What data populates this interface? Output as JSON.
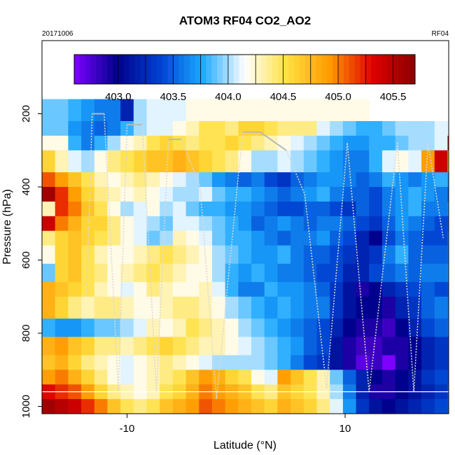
{
  "chart_data": {
    "type": "heatmap",
    "title": "ATOM3 RF04 CO2_AO2",
    "date_label": "20171006",
    "flight_label": "RF04",
    "xlabel": "Latitude (°N)",
    "ylabel": "Pressure (hPa)",
    "xlim": [
      -17.8,
      19.5
    ],
    "ylim": [
      1020,
      0
    ],
    "x_ticks": [
      -10,
      10
    ],
    "x_tick_labels": [
      "-10",
      "10"
    ],
    "y_ticks": [
      200,
      400,
      600,
      800,
      1000
    ],
    "y_tick_labels": [
      "200",
      "400",
      "600",
      "800",
      "1000"
    ],
    "colorbar": {
      "range": [
        402.6,
        405.7
      ],
      "ticks": [
        403.0,
        403.5,
        404.0,
        404.5,
        405.0,
        405.5
      ],
      "tick_labels": [
        "403.0",
        "403.5",
        "404.0",
        "404.5",
        "405.0",
        "405.5"
      ],
      "palette": [
        "#7e00ff",
        "#00008b",
        "#0040d0",
        "#1aa8ff",
        "#ffffff",
        "#ffe040",
        "#ff9a00",
        "#e00000",
        "#8b0000"
      ]
    },
    "heatmap": {
      "lat_start": -17.8,
      "lat_step": 1.2,
      "pressure_rows": [
        {
          "p_top": 160,
          "p_bot": 220,
          "values": [
            403.9,
            403.9,
            403.8,
            403.7,
            403.6,
            403.6,
            403.2,
            404.0,
            404.1,
            404.1,
            404.1,
            404.2,
            404.2,
            404.2,
            404.2,
            404.2,
            404.2,
            404.2,
            404.2,
            404.2,
            404.2,
            404.2,
            404.2,
            404.2,
            404.2,
            null,
            null,
            null,
            null,
            null,
            null,
            null
          ]
        },
        {
          "p_top": 220,
          "p_bot": 260,
          "values": [
            403.9,
            403.9,
            403.7,
            403.6,
            403.5,
            403.6,
            403.8,
            404.0,
            404.1,
            404.1,
            404.2,
            404.3,
            404.5,
            404.5,
            404.4,
            404.6,
            404.6,
            404.5,
            404.4,
            404.4,
            404.4,
            404.1,
            404.0,
            403.9,
            403.8,
            403.8,
            403.9,
            404.0,
            404.0,
            404.0,
            404.1,
            404.1
          ]
        },
        {
          "p_top": 260,
          "p_bot": 300,
          "values": [
            404.2,
            404.2,
            403.8,
            403.6,
            403.8,
            404.0,
            404.2,
            404.3,
            404.5,
            404.6,
            404.5,
            404.4,
            404.5,
            404.5,
            404.6,
            404.5,
            404.4,
            404.3,
            404.2,
            404.1,
            404.0,
            403.9,
            403.8,
            403.7,
            403.7,
            403.8,
            403.8,
            403.9,
            404.0,
            404.0,
            404.1,
            405.6
          ]
        },
        {
          "p_top": 300,
          "p_bot": 360,
          "values": [
            404.6,
            404.3,
            404.1,
            404.0,
            404.2,
            404.4,
            404.5,
            404.6,
            404.7,
            404.7,
            404.8,
            404.7,
            404.6,
            404.5,
            404.4,
            404.2,
            404.0,
            404.0,
            404.1,
            404.0,
            403.9,
            403.8,
            403.7,
            403.6,
            403.6,
            403.8,
            404.1,
            404.2,
            404.1,
            404.9,
            405.4,
            404.7
          ]
        },
        {
          "p_top": 360,
          "p_bot": 400,
          "values": [
            405.1,
            404.9,
            404.7,
            404.5,
            404.3,
            404.2,
            404.3,
            404.4,
            404.3,
            404.2,
            404.1,
            404.0,
            403.9,
            403.7,
            403.6,
            403.5,
            403.6,
            403.4,
            403.3,
            403.5,
            403.6,
            403.7,
            403.7,
            403.6,
            403.5,
            403.6,
            403.8,
            403.7,
            403.6,
            403.7,
            403.8,
            403.7
          ]
        },
        {
          "p_top": 400,
          "p_bot": 440,
          "values": [
            405.6,
            405.2,
            404.9,
            404.6,
            404.4,
            404.3,
            404.2,
            404.3,
            404.2,
            404.1,
            404.0,
            404.0,
            404.1,
            403.9,
            403.8,
            403.8,
            403.7,
            403.6,
            403.5,
            403.6,
            403.7,
            403.8,
            403.6,
            403.5,
            403.5,
            403.4,
            403.6,
            403.7,
            403.8,
            403.7,
            403.6,
            403.5
          ]
        },
        {
          "p_top": 440,
          "p_bot": 480,
          "values": [
            404.3,
            405.2,
            405.0,
            404.7,
            404.5,
            404.2,
            404.0,
            404.1,
            404.2,
            404.0,
            404.1,
            403.9,
            403.8,
            403.8,
            403.7,
            403.7,
            403.6,
            403.5,
            403.4,
            403.4,
            403.5,
            403.5,
            403.4,
            403.3,
            403.5,
            403.4,
            403.6,
            403.7,
            403.8,
            403.6,
            403.6,
            403.7
          ]
        },
        {
          "p_top": 480,
          "p_bot": 520,
          "values": [
            405.4,
            405.0,
            404.8,
            404.6,
            404.6,
            404.4,
            404.2,
            404.1,
            404.0,
            403.9,
            404.1,
            404.1,
            404.0,
            403.9,
            403.8,
            403.7,
            403.5,
            403.6,
            403.7,
            403.6,
            403.5,
            403.6,
            403.6,
            403.5,
            403.4,
            403.3,
            403.5,
            403.7,
            403.6,
            403.5,
            403.4,
            403.5
          ]
        },
        {
          "p_top": 520,
          "p_bot": 560,
          "values": [
            404.4,
            404.6,
            404.7,
            404.6,
            404.5,
            404.4,
            404.2,
            404.1,
            403.9,
            404.0,
            404.3,
            404.2,
            404.1,
            403.9,
            403.8,
            403.8,
            403.7,
            403.6,
            403.5,
            403.6,
            403.6,
            403.7,
            403.5,
            403.4,
            403.2,
            403.0,
            403.4,
            403.6,
            403.5,
            403.4,
            403.4,
            403.6
          ]
        },
        {
          "p_top": 560,
          "p_bot": 610,
          "values": [
            404.2,
            404.6,
            404.7,
            404.5,
            404.3,
            404.2,
            404.2,
            404.3,
            404.4,
            404.5,
            404.4,
            404.3,
            404.2,
            404.0,
            403.9,
            403.8,
            403.7,
            403.7,
            403.8,
            403.6,
            403.5,
            403.5,
            403.4,
            403.3,
            403.2,
            403.3,
            403.6,
            403.8,
            403.5,
            403.5,
            403.5,
            403.6
          ]
        },
        {
          "p_top": 610,
          "p_bot": 660,
          "values": [
            403.9,
            404.6,
            404.7,
            404.5,
            404.4,
            404.2,
            404.3,
            404.4,
            404.5,
            404.4,
            404.3,
            404.2,
            404.2,
            404.0,
            403.8,
            403.7,
            403.8,
            403.7,
            403.6,
            403.6,
            403.5,
            403.4,
            403.4,
            403.2,
            403.2,
            403.4,
            403.5,
            403.6,
            403.5,
            403.6,
            403.6,
            403.7
          ]
        },
        {
          "p_top": 660,
          "p_bot": 700,
          "values": [
            404.8,
            404.7,
            404.6,
            404.5,
            404.3,
            404.2,
            404.1,
            404.2,
            404.4,
            404.3,
            404.2,
            404.2,
            404.3,
            404.1,
            403.8,
            403.6,
            403.6,
            403.8,
            403.7,
            403.7,
            403.6,
            403.5,
            403.3,
            403.1,
            402.9,
            403.0,
            403.2,
            403.3,
            403.4,
            403.5,
            403.4,
            403.5
          ]
        },
        {
          "p_top": 700,
          "p_bot": 760,
          "values": [
            404.8,
            404.6,
            404.4,
            404.3,
            404.4,
            404.4,
            404.3,
            404.2,
            404.2,
            404.3,
            404.4,
            404.4,
            404.3,
            404.2,
            404.0,
            403.9,
            403.8,
            403.7,
            403.8,
            403.7,
            403.6,
            403.6,
            403.3,
            403.1,
            403.0,
            403.0,
            402.9,
            403.2,
            403.3,
            403.5,
            403.6,
            403.6
          ]
        },
        {
          "p_top": 760,
          "p_bot": 810,
          "values": [
            403.8,
            403.7,
            403.7,
            403.8,
            403.9,
            403.9,
            404.0,
            404.1,
            404.3,
            404.2,
            404.3,
            404.5,
            404.4,
            404.3,
            404.2,
            404.0,
            403.9,
            403.8,
            403.7,
            403.6,
            403.5,
            403.4,
            403.2,
            403.0,
            402.9,
            402.9,
            402.8,
            403.0,
            403.2,
            403.4,
            403.5,
            403.6
          ]
        },
        {
          "p_top": 810,
          "p_bot": 860,
          "values": [
            404.8,
            404.9,
            404.7,
            404.6,
            404.4,
            404.4,
            404.3,
            404.4,
            404.5,
            404.6,
            404.5,
            404.4,
            404.3,
            404.3,
            404.2,
            404.1,
            404.0,
            403.9,
            403.8,
            403.7,
            403.5,
            403.4,
            403.1,
            402.9,
            402.8,
            402.8,
            402.9,
            402.9,
            403.0,
            403.2,
            403.3,
            403.4
          ]
        },
        {
          "p_top": 860,
          "p_bot": 900,
          "values": [
            404.7,
            404.8,
            404.6,
            404.4,
            404.3,
            404.2,
            404.1,
            404.2,
            404.3,
            404.4,
            404.3,
            404.2,
            404.1,
            404.0,
            404.0,
            404.0,
            404.0,
            403.9,
            403.8,
            403.6,
            403.4,
            403.3,
            403.1,
            402.9,
            402.7,
            402.8,
            402.6,
            402.9,
            403.0,
            403.2,
            403.3,
            403.4
          ]
        },
        {
          "p_top": 900,
          "p_bot": 940,
          "values": [
            404.9,
            405.0,
            404.8,
            404.6,
            404.4,
            404.2,
            404.1,
            404.2,
            404.3,
            404.4,
            404.5,
            404.7,
            404.9,
            404.8,
            404.6,
            404.5,
            404.2,
            404.1,
            404.9,
            404.7,
            404.5,
            404.3,
            403.9,
            403.5,
            403.2,
            403.0,
            402.9,
            403.0,
            403.1,
            403.3,
            403.4,
            403.4
          ]
        },
        {
          "p_top": 940,
          "p_bot": 980,
          "values": [
            405.3,
            405.2,
            405.1,
            404.9,
            404.6,
            404.4,
            404.3,
            404.2,
            404.3,
            404.5,
            404.6,
            404.8,
            405.0,
            404.9,
            404.8,
            404.7,
            404.5,
            404.4,
            404.7,
            404.6,
            404.5,
            404.3,
            404.0,
            403.6,
            403.2,
            402.9,
            402.9,
            403.0,
            403.1,
            403.2,
            403.3,
            403.5
          ]
        },
        {
          "p_top": 980,
          "p_bot": 1020,
          "values": [
            405.6,
            405.5,
            405.4,
            405.2,
            405.0,
            404.7,
            404.5,
            404.4,
            404.5,
            404.7,
            404.8,
            404.9,
            405.1,
            405.0,
            404.9,
            404.8,
            404.7,
            404.6,
            404.8,
            404.7,
            404.6,
            404.4,
            404.1,
            403.7,
            403.3,
            403.1,
            403.0,
            403.1,
            403.2,
            403.3,
            403.4,
            403.5
          ]
        }
      ]
    },
    "flight_track_lat": [
      -13.7,
      -13.2,
      -12.1,
      -10.8,
      -10.0,
      -8.6,
      -7.3,
      -6.2,
      -5.0,
      -3.3,
      -1.8,
      0.6,
      2.2,
      4.6,
      6.3,
      8.3,
      10.2,
      12.2,
      14.8,
      16.3,
      17.6,
      19.0
    ],
    "flight_track_pressure": [
      700,
      200,
      200,
      960,
      230,
      230,
      960,
      270,
      270,
      400,
      980,
      250,
      250,
      300,
      420,
      950,
      280,
      960,
      280,
      960,
      280,
      540
    ],
    "surface_line_pressure": 960
  }
}
